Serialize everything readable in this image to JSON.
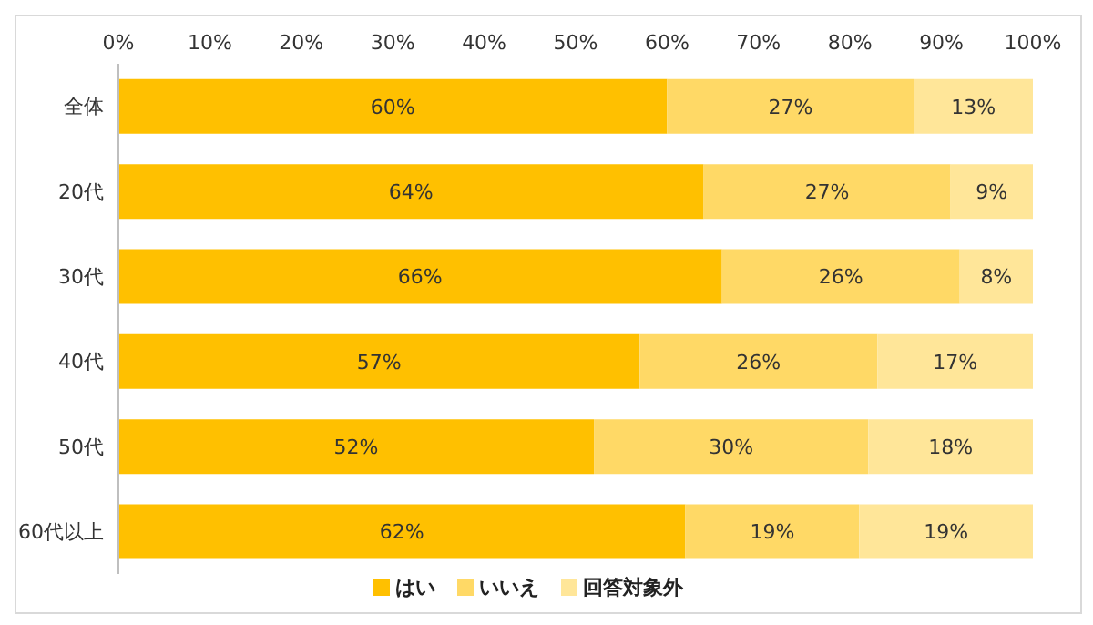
{
  "chart_data": {
    "type": "bar",
    "orientation": "horizontal",
    "stacked": true,
    "categories": [
      "全体",
      "20代",
      "30代",
      "40代",
      "50代",
      "60代以上"
    ],
    "series": [
      {
        "name": "はい",
        "color": "#ffc000",
        "values": [
          60,
          64,
          66,
          57,
          52,
          62
        ],
        "value_labels": [
          "60%",
          "64%",
          "66%",
          "57%",
          "52%",
          "62%"
        ]
      },
      {
        "name": "いいえ",
        "color": "#ffd966",
        "values": [
          27,
          27,
          26,
          26,
          30,
          19
        ],
        "value_labels": [
          "27%",
          "27%",
          "26%",
          "26%",
          "30%",
          "19%"
        ]
      },
      {
        "name": "回答対象外",
        "color": "#ffe699",
        "values": [
          13,
          9,
          8,
          17,
          18,
          19
        ],
        "value_labels": [
          "13%",
          "9%",
          "8%",
          "17%",
          "18%",
          "19%"
        ]
      }
    ],
    "xlim": [
      0,
      100
    ],
    "xticks": [
      {
        "value": 0,
        "label": "0%"
      },
      {
        "value": 10,
        "label": "10%"
      },
      {
        "value": 20,
        "label": "20%"
      },
      {
        "value": 30,
        "label": "30%"
      },
      {
        "value": 40,
        "label": "40%"
      },
      {
        "value": 50,
        "label": "50%"
      },
      {
        "value": 60,
        "label": "60%"
      },
      {
        "value": 70,
        "label": "70%"
      },
      {
        "value": 80,
        "label": "80%"
      },
      {
        "value": 90,
        "label": "90%"
      },
      {
        "value": 100,
        "label": "100%"
      }
    ],
    "legend": "bottom"
  }
}
